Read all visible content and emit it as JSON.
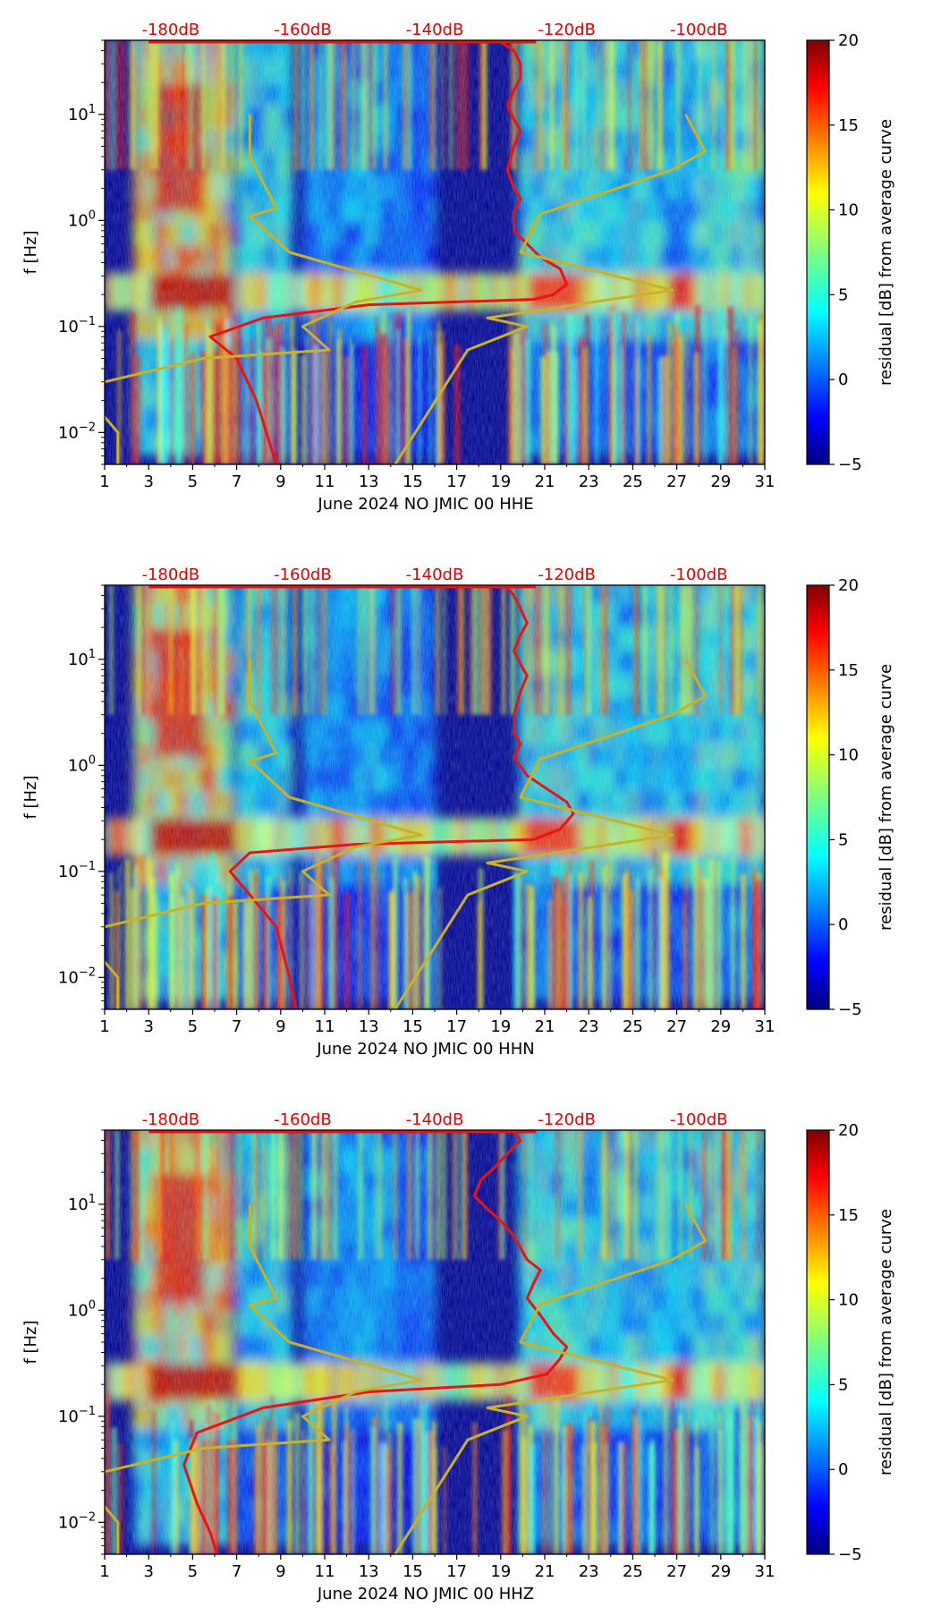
{
  "chart_data": [
    {
      "type": "heatmap",
      "title": "June 2024 NO JMIC 00 HHE",
      "xlabel": "June 2024 NO JMIC 00 HHE",
      "ylabel": "f [Hz]",
      "xlim": [
        1,
        31
      ],
      "ylim": [
        0.005,
        50
      ],
      "x_ticks": [
        "1",
        "3",
        "5",
        "7",
        "9",
        "11",
        "13",
        "15",
        "17",
        "19",
        "21",
        "23",
        "25",
        "27",
        "29",
        "31"
      ],
      "y_ticks": [
        "10^-2",
        "10^-1",
        "10^0",
        "10^1"
      ],
      "top_db_labels": [
        "-180dB",
        "-160dB",
        "-140dB",
        "-120dB",
        "-100dB"
      ],
      "colorbar": {
        "label": "residual [dB] from average curve",
        "ticks": [
          "−5",
          "0",
          "5",
          "10",
          "15",
          "20"
        ],
        "range": [
          -5,
          20
        ]
      },
      "series": [
        {
          "name": "red",
          "color": "#ee1111",
          "db": [
            -130,
            -128,
            -127,
            -127,
            -128,
            -129,
            -128,
            -127,
            -128,
            -129,
            -128,
            -127,
            -128,
            -128,
            -126,
            -124,
            -121,
            -120,
            -122,
            -125,
            -150,
            -166,
            -174,
            -170,
            -167,
            -164
          ],
          "f": [
            48,
            40,
            30,
            22,
            17,
            12,
            9,
            7,
            5,
            3,
            2,
            1.6,
            1.2,
            0.8,
            0.6,
            0.45,
            0.35,
            0.25,
            0.2,
            0.18,
            0.16,
            0.12,
            0.08,
            0.05,
            0.02,
            0.005
          ]
        },
        {
          "name": "gold",
          "color": "#c8b228",
          "db": [
            -168,
            -168,
            -164,
            -168,
            -162,
            -142,
            -152,
            -160,
            -156,
            -175,
            -190,
            -192,
            -190,
            -188,
            -188
          ],
          "f": [
            10,
            4,
            1.3,
            1.1,
            0.5,
            0.22,
            0.17,
            0.1,
            0.06,
            0.05,
            0.03,
            0.02,
            0.014,
            0.01,
            0.005
          ]
        },
        {
          "name": "gold2",
          "color": "#c8b228",
          "db": [
            -102,
            -99,
            -104,
            -123,
            -124,
            -127,
            -104,
            -132,
            -126,
            -135,
            -146
          ],
          "f": [
            10,
            4.5,
            3,
            1.2,
            1.15,
            0.5,
            0.22,
            0.12,
            0.1,
            0.06,
            0.005
          ]
        }
      ]
    },
    {
      "type": "heatmap",
      "title": "June 2024 NO JMIC 00 HHN",
      "xlabel": "June 2024 NO JMIC 00 HHN",
      "ylabel": "f [Hz]",
      "xlim": [
        1,
        31
      ],
      "ylim": [
        0.005,
        50
      ],
      "x_ticks": [
        "1",
        "3",
        "5",
        "7",
        "9",
        "11",
        "13",
        "15",
        "17",
        "19",
        "21",
        "23",
        "25",
        "27",
        "29",
        "31"
      ],
      "y_ticks": [
        "10^-2",
        "10^-1",
        "10^0",
        "10^1"
      ],
      "top_db_labels": [
        "-180dB",
        "-160dB",
        "-140dB",
        "-120dB",
        "-100dB"
      ],
      "colorbar": {
        "label": "residual [dB] from average curve",
        "ticks": [
          "−5",
          "0",
          "5",
          "10",
          "15",
          "20"
        ],
        "range": [
          -5,
          20
        ]
      },
      "series": [
        {
          "name": "red",
          "color": "#ee1111",
          "db": [
            -129,
            -128,
            -127,
            -126,
            -127,
            -128,
            -127,
            -126,
            -127,
            -128,
            -128,
            -127,
            -128,
            -126,
            -123,
            -120,
            -119,
            -121,
            -125,
            -152,
            -168,
            -171,
            -168,
            -164,
            -162,
            -161
          ],
          "f": [
            48,
            40,
            30,
            22,
            17,
            12,
            9,
            7,
            5,
            3,
            2,
            1.6,
            1.2,
            0.8,
            0.6,
            0.45,
            0.35,
            0.25,
            0.2,
            0.18,
            0.15,
            0.1,
            0.06,
            0.03,
            0.01,
            0.005
          ]
        },
        {
          "name": "gold",
          "color": "#c8b228",
          "db": [
            -168,
            -168,
            -164,
            -168,
            -162,
            -142,
            -152,
            -160,
            -156,
            -175,
            -190,
            -192,
            -190,
            -188,
            -188
          ],
          "f": [
            10,
            4,
            1.3,
            1.1,
            0.5,
            0.22,
            0.17,
            0.1,
            0.06,
            0.05,
            0.03,
            0.02,
            0.014,
            0.01,
            0.005
          ]
        },
        {
          "name": "gold2",
          "color": "#c8b228",
          "db": [
            -102,
            -99,
            -104,
            -123,
            -124,
            -127,
            -104,
            -132,
            -126,
            -135,
            -146
          ],
          "f": [
            10,
            4.5,
            3,
            1.2,
            1.15,
            0.5,
            0.22,
            0.12,
            0.1,
            0.06,
            0.005
          ]
        }
      ]
    },
    {
      "type": "heatmap",
      "title": "June 2024 NO JMIC 00 HHZ",
      "xlabel": "June 2024 NO JMIC 00 HHZ",
      "ylabel": "f [Hz]",
      "xlim": [
        1,
        31
      ],
      "ylim": [
        0.005,
        50
      ],
      "x_ticks": [
        "1",
        "3",
        "5",
        "7",
        "9",
        "11",
        "13",
        "15",
        "17",
        "19",
        "21",
        "23",
        "25",
        "27",
        "29",
        "31"
      ],
      "y_ticks": [
        "10^-2",
        "10^-1",
        "10^0",
        "10^1"
      ],
      "top_db_labels": [
        "-180dB",
        "-160dB",
        "-140dB",
        "-120dB",
        "-100dB"
      ],
      "colorbar": {
        "label": "residual [dB] from average curve",
        "ticks": [
          "−5",
          "0",
          "5",
          "10",
          "15",
          "20"
        ],
        "range": [
          -5,
          20
        ]
      },
      "series": [
        {
          "name": "red",
          "color": "#ee1111",
          "db": [
            -128,
            -127,
            -129,
            -131,
            -133,
            -134,
            -132,
            -130,
            -128,
            -126,
            -124,
            -125,
            -126,
            -124,
            -122,
            -120,
            -121,
            -123,
            -130,
            -150,
            -166,
            -176,
            -178,
            -176,
            -174,
            -173
          ],
          "f": [
            48,
            40,
            30,
            22,
            17,
            12,
            9,
            7,
            5,
            3,
            2.4,
            1.8,
            1.3,
            0.9,
            0.6,
            0.45,
            0.35,
            0.25,
            0.2,
            0.17,
            0.12,
            0.07,
            0.035,
            0.015,
            0.008,
            0.005
          ]
        },
        {
          "name": "gold",
          "color": "#c8b228",
          "db": [
            -168,
            -168,
            -164,
            -168,
            -162,
            -142,
            -152,
            -160,
            -156,
            -175,
            -190,
            -192,
            -190,
            -188,
            -188
          ],
          "f": [
            10,
            4,
            1.3,
            1.1,
            0.5,
            0.22,
            0.17,
            0.1,
            0.06,
            0.05,
            0.03,
            0.02,
            0.014,
            0.01,
            0.005
          ]
        },
        {
          "name": "gold2",
          "color": "#c8b228",
          "db": [
            -102,
            -99,
            -104,
            -123,
            -124,
            -127,
            -104,
            -132,
            -126,
            -135,
            -146
          ],
          "f": [
            10,
            4.5,
            3,
            1.2,
            1.15,
            0.5,
            0.22,
            0.12,
            0.1,
            0.06,
            0.005
          ]
        }
      ]
    }
  ]
}
